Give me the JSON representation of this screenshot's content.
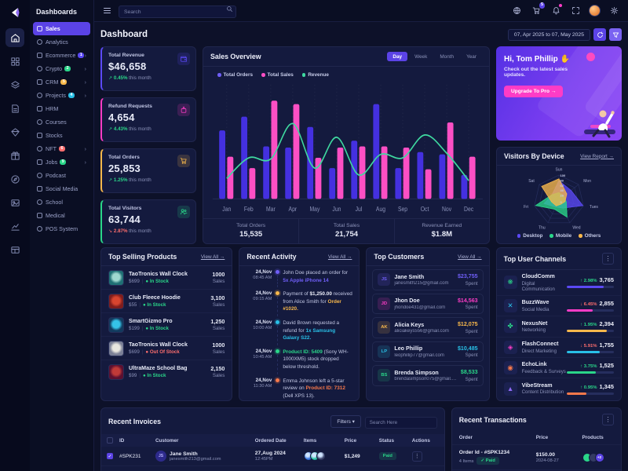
{
  "sidebar": {
    "title": "Dashboards",
    "items": [
      {
        "label": "Sales",
        "active": true
      },
      {
        "label": "Analytics"
      },
      {
        "label": "Ecommerce",
        "badge": "1",
        "badge_color": "#5b49f5",
        "chevron": true
      },
      {
        "label": "Crypto",
        "badge": "2",
        "badge_color": "#2ad689",
        "chevron": true
      },
      {
        "label": "CRM",
        "badge": "5",
        "badge_color": "#f8b84b",
        "chevron": true
      },
      {
        "label": "Projects",
        "badge": "4",
        "badge_color": "#29c0e7",
        "chevron": true
      },
      {
        "label": "HRM"
      },
      {
        "label": "Courses"
      },
      {
        "label": "Stocks"
      },
      {
        "label": "NFT",
        "badge": "6",
        "badge_color": "#fd6e6e",
        "chevron": true
      },
      {
        "label": "Jobs",
        "badge": "9",
        "badge_color": "#2ad689",
        "chevron": true
      },
      {
        "label": "Podcast"
      },
      {
        "label": "Social Media"
      },
      {
        "label": "School"
      },
      {
        "label": "Medical"
      },
      {
        "label": "POS System"
      }
    ]
  },
  "rail_icons": [
    "home",
    "apps",
    "layers",
    "pages",
    "gem",
    "gift",
    "compass",
    "gallery",
    "chart",
    "table"
  ],
  "topbar": {
    "search_placeholder": "Search",
    "cart_badge": "5"
  },
  "page": {
    "title": "Dashboard",
    "date_range": "07, Apr 2025 to 07, May 2025"
  },
  "stats": [
    {
      "label": "Total Revenue",
      "value": "$46,658",
      "change": "0.45%",
      "suffix": "this month",
      "direction": "up",
      "accent": "#5b49f5",
      "icon": "wallet"
    },
    {
      "label": "Refund Requests",
      "value": "4,654",
      "change": "4.43%",
      "suffix": "this month",
      "direction": "up",
      "accent": "#fd3cc6",
      "icon": "refund"
    },
    {
      "label": "Total Orders",
      "value": "25,853",
      "change": "1.25%",
      "suffix": "this month",
      "direction": "up",
      "accent": "#f8b84b",
      "icon": "cart"
    },
    {
      "label": "Total Visitors",
      "value": "63,744",
      "change": "2.87%",
      "suffix": "this month",
      "direction": "down",
      "accent": "#2ad689",
      "icon": "users"
    }
  ],
  "sales_overview": {
    "title": "Sales Overview",
    "tabs": [
      "Day",
      "Week",
      "Month",
      "Year"
    ],
    "active_tab": "Day",
    "chart_data": {
      "type": "bar+line",
      "categories": [
        "Jan",
        "Feb",
        "Mar",
        "Apr",
        "May",
        "Jun",
        "Jul",
        "Aug",
        "Sep",
        "Oct",
        "Nov",
        "Dec"
      ],
      "series": [
        {
          "name": "Total Orders",
          "type": "bar",
          "color": "#4430e0",
          "values": [
            60,
            72,
            46,
            45,
            63,
            27,
            51,
            83,
            27,
            41,
            39,
            21
          ]
        },
        {
          "name": "Total Sales",
          "type": "bar",
          "color": "#fc4fc4",
          "values": [
            37,
            27,
            86,
            83,
            36,
            45,
            46,
            46,
            45,
            26,
            67,
            37
          ]
        },
        {
          "name": "Revenue",
          "type": "line",
          "color": "#3fd9a0",
          "values": [
            18,
            36,
            35,
            66,
            27,
            54,
            21,
            39,
            36,
            56,
            40,
            16
          ]
        }
      ],
      "ylim": [
        0,
        100
      ],
      "grid": "dotted-vertical",
      "legend_position": "top-left"
    },
    "summary": [
      {
        "label": "Total Orders",
        "value": "15,535"
      },
      {
        "label": "Total Sales",
        "value": "21,754"
      },
      {
        "label": "Revenue Earned",
        "value": "$1.8M"
      }
    ]
  },
  "greeting": {
    "title": "Hi, Tom Phillip",
    "emoji": "✋",
    "subtitle": "Check out the latest sales updates.",
    "button": "Upgrade To Pro →"
  },
  "visitors_by_device": {
    "title": "Visitors By Device",
    "link": "View Report →",
    "chart_data": {
      "type": "radar",
      "categories": [
        "Sun",
        "Mon",
        "Tues",
        "Wed",
        "Thu",
        "Fri",
        "Sat"
      ],
      "ticks": [
        0,
        20,
        40,
        60,
        80,
        100
      ],
      "rlim": [
        0,
        100
      ],
      "series": [
        {
          "name": "Desktop",
          "color": "#5b49f5",
          "values": [
            78,
            62,
            98,
            35,
            30,
            60,
            35
          ]
        },
        {
          "name": "Mobile",
          "color": "#2ad689",
          "values": [
            30,
            25,
            30,
            75,
            40,
            95,
            35
          ]
        },
        {
          "name": "Others",
          "color": "#f8b84b",
          "values": [
            85,
            40,
            25,
            18,
            25,
            30,
            88
          ]
        }
      ],
      "legend_position": "bottom"
    }
  },
  "top_selling_products": {
    "title": "Top Selling Products",
    "link": "View All →",
    "sales_suffix": "Sales",
    "items": [
      {
        "name": "TaoTronics Wall Clock",
        "price": "$699",
        "stock": "In Stock",
        "stock_state": "in",
        "sales": "1000",
        "thumb": "clock"
      },
      {
        "name": "Club Fleece Hoodie",
        "price": "$55",
        "stock": "In Stock",
        "stock_state": "in",
        "sales": "3,100",
        "thumb": "hoodie"
      },
      {
        "name": "SmartGizmo Pro",
        "price": "$199",
        "stock": "In Stock",
        "stock_state": "in",
        "sales": "1,250",
        "thumb": "earbuds"
      },
      {
        "name": "TaoTronics Wall Clock",
        "price": "$699",
        "stock": "Out Of Stock",
        "stock_state": "out",
        "sales": "1000",
        "thumb": "kettle"
      },
      {
        "name": "UltraMaze School Bag",
        "price": "$99",
        "stock": "In Stock",
        "stock_state": "in",
        "sales": "2,150",
        "thumb": "bag"
      }
    ]
  },
  "recent_activity": {
    "title": "Recent Activity",
    "link": "View All →",
    "items": [
      {
        "date": "24,Nov",
        "time": "08:45 AM",
        "color": "#6f5ef6",
        "parts": [
          {
            "t": "John Doe placed an order for "
          },
          {
            "t": "5x Apple iPhone 14",
            "c": "#6f5ef6"
          }
        ]
      },
      {
        "date": "24,Nov",
        "time": "09:15 AM",
        "color": "#f8b84b",
        "parts": [
          {
            "t": "Payment of "
          },
          {
            "t": "$1,250.00",
            "b": true
          },
          {
            "t": " received from Alice Smith for "
          },
          {
            "t": "Order #1020.",
            "c": "#f8b84b"
          }
        ]
      },
      {
        "date": "24,Nov",
        "time": "10:00 AM",
        "color": "#29c0e7",
        "parts": [
          {
            "t": "David Brown requested a refund for "
          },
          {
            "t": "1x Samsung Galaxy S22.",
            "c": "#29c0e7"
          }
        ]
      },
      {
        "date": "24,Nov",
        "time": "10:45 AM",
        "color": "#2ad689",
        "parts": [
          {
            "t": "Product ID: 5409",
            "c": "#2ad689"
          },
          {
            "t": " (Sony WH-1000XM5) stock dropped below threshold."
          }
        ]
      },
      {
        "date": "24,Nov",
        "time": "11:30 AM",
        "color": "#f8794b",
        "parts": [
          {
            "t": "Emma Johnson left a 5-star review on "
          },
          {
            "t": "Product ID: 7312",
            "c": "#f8794b"
          },
          {
            "t": " (Dell XPS 13)."
          }
        ]
      }
    ]
  },
  "top_customers": {
    "title": "Top Customers",
    "link": "View All →",
    "spent_label": "Spent",
    "items": [
      {
        "initials": "JS",
        "name": "Jane Smith",
        "email": "janesmith215@gmail.com",
        "amount": "$23,755",
        "color": "#6f5ef6"
      },
      {
        "initials": "JD",
        "name": "Jhon Doe",
        "email": "jhondoe431@gmail.com",
        "amount": "$14,563",
        "color": "#fd3cc6"
      },
      {
        "initials": "AK",
        "name": "Alicia Keys",
        "email": "aliciakeys556@gmail.com",
        "amount": "$12,075",
        "color": "#f8b84b"
      },
      {
        "initials": "LP",
        "name": "Leo Phillip",
        "email": "leophillip77@gmail.com",
        "amount": "$10,485",
        "color": "#29c0e7"
      },
      {
        "initials": "BS",
        "name": "Brenda Simpson",
        "email": "brendasimpson075@gmail.com",
        "amount": "$8,533",
        "color": "#2ad689"
      }
    ]
  },
  "top_user_channels": {
    "title": "Top User Channels",
    "items": [
      {
        "name": "CloudComm",
        "category": "Digital Communication",
        "change": "2.98%",
        "direction": "up",
        "value": "3,765",
        "color": "#5b49f5",
        "bar_pct": 78,
        "glyph": "❋",
        "glyph_color": "#2ad689"
      },
      {
        "name": "BuzzWave",
        "category": "Social Media",
        "change": "6.45%",
        "direction": "down",
        "value": "2,855",
        "color": "#fd3cc6",
        "bar_pct": 55,
        "glyph": "✕",
        "glyph_color": "#29c0e7"
      },
      {
        "name": "NexusNet",
        "category": "Networking",
        "change": "1.95%",
        "direction": "up",
        "value": "2,394",
        "color": "#f8b84b",
        "bar_pct": 85,
        "glyph": "✤",
        "glyph_color": "#2ad689"
      },
      {
        "name": "FlashConnect",
        "category": "Direct Marketing",
        "change": "5.91%",
        "direction": "down",
        "value": "1,755",
        "color": "#29c0e7",
        "bar_pct": 70,
        "glyph": "◈",
        "glyph_color": "#fd3cc6"
      },
      {
        "name": "EchoLink",
        "category": "Feedback & Surveys",
        "change": "3.75%",
        "direction": "up",
        "value": "1,525",
        "color": "#2ad689",
        "bar_pct": 62,
        "glyph": "◉",
        "glyph_color": "#f8794b"
      },
      {
        "name": "VibeStream",
        "category": "Content Distribution",
        "change": "0.95%",
        "direction": "up",
        "value": "1,345",
        "color": "#f8794b",
        "bar_pct": 42,
        "glyph": "▲",
        "glyph_color": "#8f6bf5"
      }
    ]
  },
  "recent_invoices": {
    "title": "Recent Invoices",
    "filters_label": "Filters ▾",
    "search_placeholder": "Search Here",
    "columns": [
      "ID",
      "Customer",
      "Ordered Date",
      "Items",
      "Price",
      "Status",
      "Actions"
    ],
    "rows": [
      {
        "id": "#SPK231",
        "customer": "Jane Smith",
        "initials": "JS",
        "email": "janesmith213@gmail.com",
        "date": "27,Aug 2024",
        "time": "12:45PM",
        "price": "$1,249",
        "status": "Paid",
        "checked": true
      }
    ]
  },
  "recent_transactions": {
    "title": "Recent Transactions",
    "columns": [
      "Order",
      "Price",
      "Products"
    ],
    "rows": [
      {
        "order_id": "Order Id - #SPK1234",
        "items": "4 Items",
        "status": "Paid",
        "price": "$150.00",
        "date": "2024-08-27",
        "extra": "+2"
      }
    ]
  }
}
